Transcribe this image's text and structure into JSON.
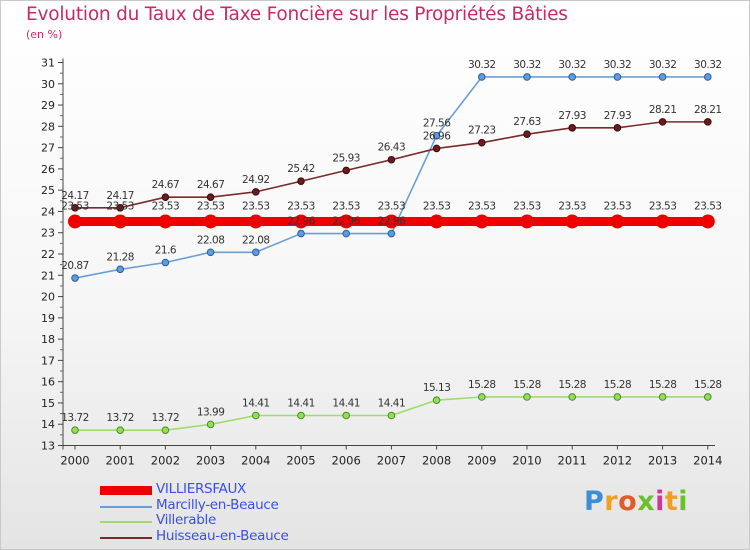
{
  "title": "Evolution du Taux de Taxe Foncière sur les Propriétés Bâties",
  "subtitle": "(en %)",
  "logo": {
    "letters": [
      "P",
      "r",
      "o",
      "x",
      "i",
      "t",
      "i"
    ],
    "colors": [
      "#3b8fd6",
      "#f0a020",
      "#e25b2c",
      "#6cbf2f",
      "#d9339a",
      "#f0a020",
      "#6cbf2f"
    ]
  },
  "chart_data": {
    "type": "line",
    "title": "Evolution du Taux de Taxe Foncière sur les Propriétés Bâties",
    "ylabel": "(en %)",
    "x": [
      "2000",
      "2001",
      "2002",
      "2003",
      "2004",
      "2005",
      "2006",
      "2007",
      "2008",
      "2009",
      "2010",
      "2011",
      "2012",
      "2013",
      "2014"
    ],
    "ylim": [
      13,
      31
    ],
    "yticks": [
      "13",
      "14",
      "15",
      "16",
      "17",
      "18",
      "19",
      "20",
      "21",
      "22",
      "23",
      "24",
      "25",
      "26",
      "27",
      "28",
      "29",
      "30",
      "31"
    ],
    "grid": false,
    "legend_position": "bottom-left",
    "series": [
      {
        "name": "VILLIERSFAUX",
        "color": "#ee0000",
        "values": [
          23.53,
          23.53,
          23.53,
          23.53,
          23.53,
          23.53,
          23.53,
          23.53,
          23.53,
          23.53,
          23.53,
          23.53,
          23.53,
          23.53,
          23.53
        ],
        "labels": [
          "23.53",
          "23.53",
          "23.53",
          "23.53",
          "23.53",
          "23.53",
          "23.53",
          "23.53",
          "23.53",
          "23.53",
          "23.53",
          "23.53",
          "23.53",
          "23.53",
          "23.53"
        ]
      },
      {
        "name": "Marcilly-en-Beauce",
        "color": "#6a9fd4",
        "values": [
          20.87,
          21.28,
          21.6,
          22.08,
          22.08,
          22.96,
          22.96,
          22.96,
          27.56,
          30.32,
          30.32,
          30.32,
          30.32,
          30.32,
          30.32
        ],
        "labels": [
          "20.87",
          "21.28",
          "21.6",
          "22.08",
          "22.08",
          "22.96",
          "22.96",
          "22.96",
          "27.56",
          "30.32",
          "30.32",
          "30.32",
          "30.32",
          "30.32",
          "30.32"
        ]
      },
      {
        "name": "Villerable",
        "color": "#9fdc6a",
        "values": [
          13.72,
          13.72,
          13.72,
          13.99,
          14.41,
          14.41,
          14.41,
          14.41,
          15.13,
          15.28,
          15.28,
          15.28,
          15.28,
          15.28,
          15.28
        ],
        "labels": [
          "13.72",
          "13.72",
          "13.72",
          "13.99",
          "14.41",
          "14.41",
          "14.41",
          "14.41",
          "15.13",
          "15.28",
          "15.28",
          "15.28",
          "15.28",
          "15.28",
          "15.28"
        ]
      },
      {
        "name": "Huisseau-en-Beauce",
        "color": "#7a2a2a",
        "values": [
          24.17,
          24.17,
          24.67,
          24.67,
          24.92,
          25.42,
          25.93,
          26.43,
          26.96,
          27.23,
          27.63,
          27.93,
          27.93,
          28.21,
          28.21
        ],
        "labels": [
          "24.17",
          "24.17",
          "24.67",
          "24.67",
          "24.92",
          "25.42",
          "25.93",
          "26.43",
          "26.96",
          "27.23",
          "27.63",
          "27.93",
          "27.93",
          "28.21",
          "28.21"
        ]
      }
    ]
  }
}
